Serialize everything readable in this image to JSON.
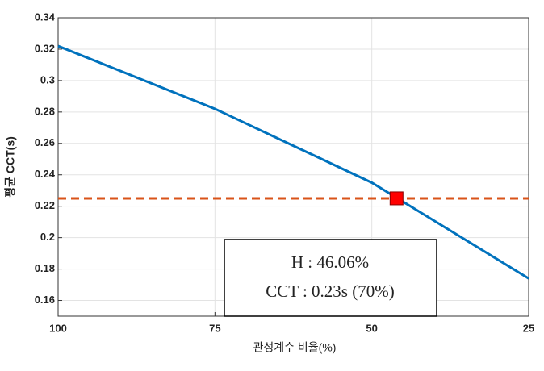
{
  "chart_data": {
    "type": "line",
    "x": [
      100,
      75,
      50,
      25
    ],
    "series": [
      {
        "color": "#0072bd",
        "values": [
          0.322,
          0.282,
          0.235,
          0.174
        ]
      }
    ],
    "xlim": [
      100,
      25
    ],
    "xticks": [
      100,
      75,
      50,
      25
    ],
    "ylim": [
      0.15,
      0.34
    ],
    "yticks": [
      0.16,
      0.18,
      0.2,
      0.22,
      0.24,
      0.26,
      0.28,
      0.3,
      0.32,
      0.34
    ],
    "grid": true,
    "xlabel": "관성계수 비율(%)",
    "ylabel": "평균 CCT(s)",
    "hline": {
      "value": 0.225,
      "color": "#d95319"
    },
    "marker": {
      "x": 46.06,
      "y": 0.225,
      "color": "#ff0000"
    },
    "annotations": [
      "H : 46.06%",
      "CCT : 0.23s (70%)"
    ]
  }
}
